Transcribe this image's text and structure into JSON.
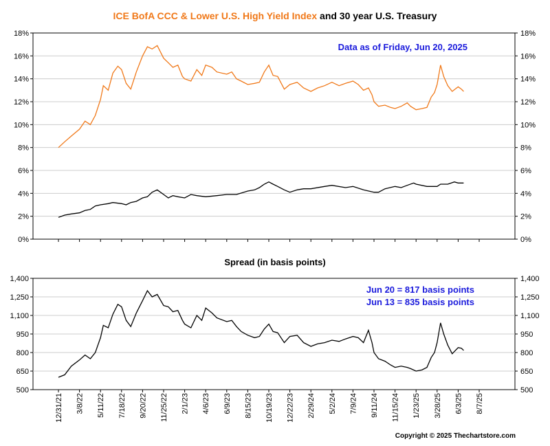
{
  "title": {
    "part1": "ICE BofA CCC & Lower U.S. High Yield Index",
    "part2": " and 30 year U.S. Treasury",
    "part1_color": "#f07818",
    "part2_color": "#000000"
  },
  "top_annotation": "Data as of Friday, Jun 20, 2025",
  "spread_title": "Spread (in basis points)",
  "spread_annotations": [
    "Jun 20 = 817 basis points",
    "Jun 13 = 835 basis points"
  ],
  "copyright": "Copyright © 2025 Thechartstore.com",
  "colors": {
    "hy": "#f07818",
    "treasury": "#000000",
    "spread": "#000000",
    "annotation": "#1a1adc"
  },
  "chart_data": [
    {
      "type": "line",
      "title": "ICE BofA CCC & Lower U.S. High Yield Index and 30 year U.S. Treasury",
      "ylim": [
        0,
        18
      ],
      "yticks": [
        "0%",
        "2%",
        "4%",
        "6%",
        "8%",
        "10%",
        "12%",
        "14%",
        "16%",
        "18%"
      ],
      "series": [
        {
          "name": "ICE BofA CCC & Lower U.S. High Yield Index",
          "color": "#f07818",
          "points": [
            [
              "2021-12-31",
              8.0
            ],
            [
              "2022-01-20",
              8.5
            ],
            [
              "2022-02-10",
              9.0
            ],
            [
              "2022-03-08",
              9.6
            ],
            [
              "2022-03-25",
              10.3
            ],
            [
              "2022-04-10",
              10.0
            ],
            [
              "2022-04-25",
              10.8
            ],
            [
              "2022-05-11",
              12.2
            ],
            [
              "2022-05-20",
              13.4
            ],
            [
              "2022-06-05",
              13.0
            ],
            [
              "2022-06-20",
              14.5
            ],
            [
              "2022-07-06",
              15.1
            ],
            [
              "2022-07-18",
              14.8
            ],
            [
              "2022-08-01",
              13.6
            ],
            [
              "2022-08-15",
              13.1
            ],
            [
              "2022-09-01",
              14.6
            ],
            [
              "2022-09-20",
              16.0
            ],
            [
              "2022-10-05",
              16.8
            ],
            [
              "2022-10-20",
              16.6
            ],
            [
              "2022-11-05",
              16.9
            ],
            [
              "2022-11-25",
              15.8
            ],
            [
              "2022-12-10",
              15.4
            ],
            [
              "2022-12-25",
              15.0
            ],
            [
              "2023-01-10",
              15.2
            ],
            [
              "2023-01-25",
              14.2
            ],
            [
              "2023-02-01",
              14.0
            ],
            [
              "2023-02-20",
              13.8
            ],
            [
              "2023-03-10",
              14.8
            ],
            [
              "2023-03-25",
              14.3
            ],
            [
              "2023-04-06",
              15.2
            ],
            [
              "2023-04-25",
              15.0
            ],
            [
              "2023-05-10",
              14.6
            ],
            [
              "2023-06-09",
              14.4
            ],
            [
              "2023-06-25",
              14.6
            ],
            [
              "2023-07-10",
              14.0
            ],
            [
              "2023-07-25",
              13.8
            ],
            [
              "2023-08-15",
              13.5
            ],
            [
              "2023-09-05",
              13.6
            ],
            [
              "2023-09-20",
              13.7
            ],
            [
              "2023-10-05",
              14.6
            ],
            [
              "2023-10-19",
              15.2
            ],
            [
              "2023-11-01",
              14.3
            ],
            [
              "2023-11-15",
              14.2
            ],
            [
              "2023-12-05",
              13.1
            ],
            [
              "2023-12-22",
              13.5
            ],
            [
              "2024-01-15",
              13.7
            ],
            [
              "2024-02-05",
              13.2
            ],
            [
              "2024-02-29",
              12.9
            ],
            [
              "2024-03-20",
              13.2
            ],
            [
              "2024-04-10",
              13.4
            ],
            [
              "2024-05-02",
              13.7
            ],
            [
              "2024-05-25",
              13.4
            ],
            [
              "2024-06-15",
              13.6
            ],
            [
              "2024-07-09",
              13.8
            ],
            [
              "2024-07-25",
              13.5
            ],
            [
              "2024-08-10",
              13.0
            ],
            [
              "2024-08-25",
              13.2
            ],
            [
              "2024-09-05",
              12.6
            ],
            [
              "2024-09-11",
              12.0
            ],
            [
              "2024-09-25",
              11.6
            ],
            [
              "2024-10-15",
              11.7
            ],
            [
              "2024-11-01",
              11.5
            ],
            [
              "2024-11-15",
              11.4
            ],
            [
              "2024-12-05",
              11.6
            ],
            [
              "2024-12-25",
              11.9
            ],
            [
              "2025-01-05",
              11.6
            ],
            [
              "2025-01-23",
              11.3
            ],
            [
              "2025-02-10",
              11.4
            ],
            [
              "2025-02-25",
              11.5
            ],
            [
              "2025-03-10",
              12.4
            ],
            [
              "2025-03-20",
              12.8
            ],
            [
              "2025-03-28",
              13.5
            ],
            [
              "2025-04-08",
              15.2
            ],
            [
              "2025-04-18",
              14.2
            ],
            [
              "2025-05-01",
              13.4
            ],
            [
              "2025-05-15",
              12.9
            ],
            [
              "2025-06-03",
              13.3
            ],
            [
              "2025-06-13",
              13.1
            ],
            [
              "2025-06-20",
              12.9
            ]
          ]
        },
        {
          "name": "30 year U.S. Treasury",
          "color": "#000000",
          "points": [
            [
              "2021-12-31",
              1.9
            ],
            [
              "2022-01-20",
              2.1
            ],
            [
              "2022-02-10",
              2.2
            ],
            [
              "2022-03-08",
              2.3
            ],
            [
              "2022-03-25",
              2.5
            ],
            [
              "2022-04-10",
              2.6
            ],
            [
              "2022-04-25",
              2.9
            ],
            [
              "2022-05-11",
              3.0
            ],
            [
              "2022-06-05",
              3.1
            ],
            [
              "2022-06-20",
              3.2
            ],
            [
              "2022-07-18",
              3.1
            ],
            [
              "2022-08-01",
              3.0
            ],
            [
              "2022-08-15",
              3.2
            ],
            [
              "2022-09-01",
              3.3
            ],
            [
              "2022-09-20",
              3.6
            ],
            [
              "2022-10-05",
              3.7
            ],
            [
              "2022-10-20",
              4.1
            ],
            [
              "2022-11-05",
              4.3
            ],
            [
              "2022-11-25",
              3.9
            ],
            [
              "2022-12-10",
              3.6
            ],
            [
              "2022-12-25",
              3.8
            ],
            [
              "2023-01-10",
              3.7
            ],
            [
              "2023-02-01",
              3.6
            ],
            [
              "2023-02-20",
              3.9
            ],
            [
              "2023-03-10",
              3.8
            ],
            [
              "2023-04-06",
              3.7
            ],
            [
              "2023-05-10",
              3.8
            ],
            [
              "2023-06-09",
              3.9
            ],
            [
              "2023-07-10",
              3.9
            ],
            [
              "2023-08-15",
              4.2
            ],
            [
              "2023-09-05",
              4.3
            ],
            [
              "2023-09-20",
              4.5
            ],
            [
              "2023-10-05",
              4.8
            ],
            [
              "2023-10-19",
              5.0
            ],
            [
              "2023-11-01",
              4.8
            ],
            [
              "2023-11-15",
              4.6
            ],
            [
              "2023-12-05",
              4.3
            ],
            [
              "2023-12-22",
              4.1
            ],
            [
              "2024-01-15",
              4.3
            ],
            [
              "2024-02-05",
              4.4
            ],
            [
              "2024-02-29",
              4.4
            ],
            [
              "2024-04-10",
              4.6
            ],
            [
              "2024-05-02",
              4.7
            ],
            [
              "2024-06-15",
              4.5
            ],
            [
              "2024-07-09",
              4.6
            ],
            [
              "2024-08-10",
              4.3
            ],
            [
              "2024-09-11",
              4.1
            ],
            [
              "2024-09-25",
              4.1
            ],
            [
              "2024-10-15",
              4.4
            ],
            [
              "2024-11-15",
              4.6
            ],
            [
              "2024-12-05",
              4.5
            ],
            [
              "2024-12-25",
              4.7
            ],
            [
              "2025-01-15",
              4.9
            ],
            [
              "2025-01-23",
              4.8
            ],
            [
              "2025-02-25",
              4.6
            ],
            [
              "2025-03-10",
              4.6
            ],
            [
              "2025-03-28",
              4.6
            ],
            [
              "2025-04-08",
              4.8
            ],
            [
              "2025-05-01",
              4.8
            ],
            [
              "2025-05-22",
              5.0
            ],
            [
              "2025-06-03",
              4.9
            ],
            [
              "2025-06-20",
              4.9
            ]
          ]
        }
      ]
    },
    {
      "type": "line",
      "title": "Spread (in basis points)",
      "ylim": [
        500,
        1400
      ],
      "yticks": [
        "500",
        "650",
        "800",
        "950",
        "1,100",
        "1,250",
        "1,400"
      ],
      "x_ticks": [
        "12/31/21",
        "3/8/22",
        "5/11/22",
        "7/18/22",
        "9/20/22",
        "11/25/22",
        "2/1/23",
        "4/6/23",
        "6/9/23",
        "8/15/23",
        "10/19/23",
        "12/22/23",
        "2/29/24",
        "5/2/24",
        "7/9/24",
        "9/11/24",
        "11/15/24",
        "1/23/25",
        "3/28/25",
        "6/3/25",
        "8/7/25"
      ],
      "series": [
        {
          "name": "Spread",
          "color": "#000000",
          "points": [
            [
              "2021-12-31",
              600
            ],
            [
              "2022-01-20",
              620
            ],
            [
              "2022-02-10",
              690
            ],
            [
              "2022-03-08",
              740
            ],
            [
              "2022-03-25",
              780
            ],
            [
              "2022-04-10",
              750
            ],
            [
              "2022-04-25",
              800
            ],
            [
              "2022-05-11",
              920
            ],
            [
              "2022-05-20",
              1020
            ],
            [
              "2022-06-05",
              1000
            ],
            [
              "2022-06-20",
              1110
            ],
            [
              "2022-07-06",
              1190
            ],
            [
              "2022-07-18",
              1170
            ],
            [
              "2022-08-01",
              1060
            ],
            [
              "2022-08-15",
              1010
            ],
            [
              "2022-09-01",
              1120
            ],
            [
              "2022-09-20",
              1220
            ],
            [
              "2022-10-05",
              1300
            ],
            [
              "2022-10-20",
              1250
            ],
            [
              "2022-11-05",
              1270
            ],
            [
              "2022-11-25",
              1180
            ],
            [
              "2022-12-10",
              1170
            ],
            [
              "2022-12-25",
              1130
            ],
            [
              "2023-01-10",
              1140
            ],
            [
              "2023-01-25",
              1060
            ],
            [
              "2023-02-01",
              1030
            ],
            [
              "2023-02-20",
              1000
            ],
            [
              "2023-03-10",
              1100
            ],
            [
              "2023-03-25",
              1060
            ],
            [
              "2023-04-06",
              1160
            ],
            [
              "2023-04-25",
              1120
            ],
            [
              "2023-05-10",
              1080
            ],
            [
              "2023-06-09",
              1050
            ],
            [
              "2023-06-25",
              1060
            ],
            [
              "2023-07-10",
              1010
            ],
            [
              "2023-07-25",
              970
            ],
            [
              "2023-08-15",
              940
            ],
            [
              "2023-09-05",
              920
            ],
            [
              "2023-09-20",
              930
            ],
            [
              "2023-10-05",
              990
            ],
            [
              "2023-10-19",
              1030
            ],
            [
              "2023-11-01",
              970
            ],
            [
              "2023-11-15",
              960
            ],
            [
              "2023-12-05",
              880
            ],
            [
              "2023-12-22",
              930
            ],
            [
              "2024-01-15",
              940
            ],
            [
              "2024-02-05",
              880
            ],
            [
              "2024-02-29",
              850
            ],
            [
              "2024-03-20",
              870
            ],
            [
              "2024-04-10",
              880
            ],
            [
              "2024-05-02",
              900
            ],
            [
              "2024-05-25",
              890
            ],
            [
              "2024-06-15",
              910
            ],
            [
              "2024-07-09",
              930
            ],
            [
              "2024-07-25",
              920
            ],
            [
              "2024-08-10",
              880
            ],
            [
              "2024-08-25",
              980
            ],
            [
              "2024-09-05",
              880
            ],
            [
              "2024-09-11",
              800
            ],
            [
              "2024-09-25",
              750
            ],
            [
              "2024-10-15",
              730
            ],
            [
              "2024-11-01",
              700
            ],
            [
              "2024-11-15",
              680
            ],
            [
              "2024-12-05",
              690
            ],
            [
              "2024-12-25",
              680
            ],
            [
              "2025-01-05",
              670
            ],
            [
              "2025-01-23",
              650
            ],
            [
              "2025-02-10",
              660
            ],
            [
              "2025-02-25",
              680
            ],
            [
              "2025-03-10",
              760
            ],
            [
              "2025-03-20",
              800
            ],
            [
              "2025-03-28",
              880
            ],
            [
              "2025-04-08",
              1040
            ],
            [
              "2025-04-18",
              950
            ],
            [
              "2025-05-01",
              860
            ],
            [
              "2025-05-15",
              790
            ],
            [
              "2025-06-03",
              840
            ],
            [
              "2025-06-13",
              835
            ],
            [
              "2025-06-20",
              817
            ]
          ]
        }
      ]
    }
  ]
}
